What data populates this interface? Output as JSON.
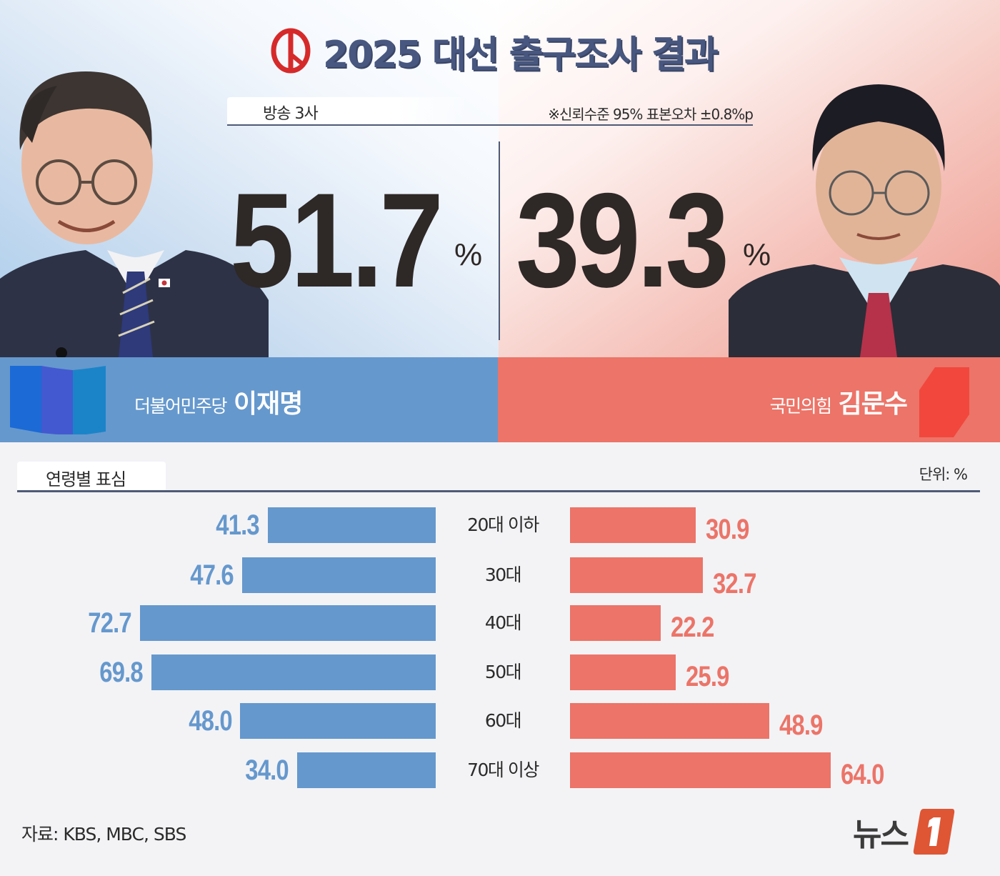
{
  "header": {
    "title": "2025 대선 출구조사 결과",
    "logo_icon": "ballot-stamp-icon",
    "source_tab": "방송 3사",
    "note": "※신뢰수준 95% 표본오차 ±0.8%p"
  },
  "candidates": [
    {
      "party": "더불어민주당",
      "name": "이재명",
      "share": "51.7",
      "unit": "%",
      "color": "#6598cd",
      "party_icon": "democratic-party-flag-icon"
    },
    {
      "party": "국민의힘",
      "name": "김문수",
      "share": "39.3",
      "unit": "%",
      "color": "#ec7468",
      "party_icon": "people-power-party-emblem-icon"
    }
  ],
  "age_section": {
    "title": "연령별 표심",
    "unit_label": "단위: %"
  },
  "chart_data": {
    "type": "bar",
    "title": "연령별 표심",
    "subtitle": "2025 대선 출구조사 결과 (방송 3사)",
    "orientation": "horizontal-butterfly",
    "categories": [
      "20대 이하",
      "30대",
      "40대",
      "50대",
      "60대",
      "70대 이상"
    ],
    "series": [
      {
        "name": "더불어민주당 이재명",
        "color": "#6598cd",
        "values": [
          41.3,
          47.6,
          72.7,
          69.8,
          48.0,
          34.0
        ],
        "labels": [
          "41.3",
          "47.6",
          "72.7",
          "69.8",
          "48.0",
          "34.0"
        ]
      },
      {
        "name": "국민의힘 김문수",
        "color": "#ec7468",
        "values": [
          30.9,
          32.7,
          22.2,
          25.9,
          48.9,
          64.0
        ],
        "labels": [
          "30.9",
          "32.7",
          "22.2",
          "25.9",
          "48.9",
          "64.0"
        ]
      }
    ],
    "overall": {
      "이재명": 51.7,
      "김문수": 39.3
    },
    "unit": "%",
    "xlabel": "",
    "ylabel": "",
    "grid": false,
    "legend_position": "banner"
  },
  "footer": {
    "source": "자료: KBS, MBC, SBS",
    "brand": "뉴스",
    "brand_mark": "1"
  }
}
